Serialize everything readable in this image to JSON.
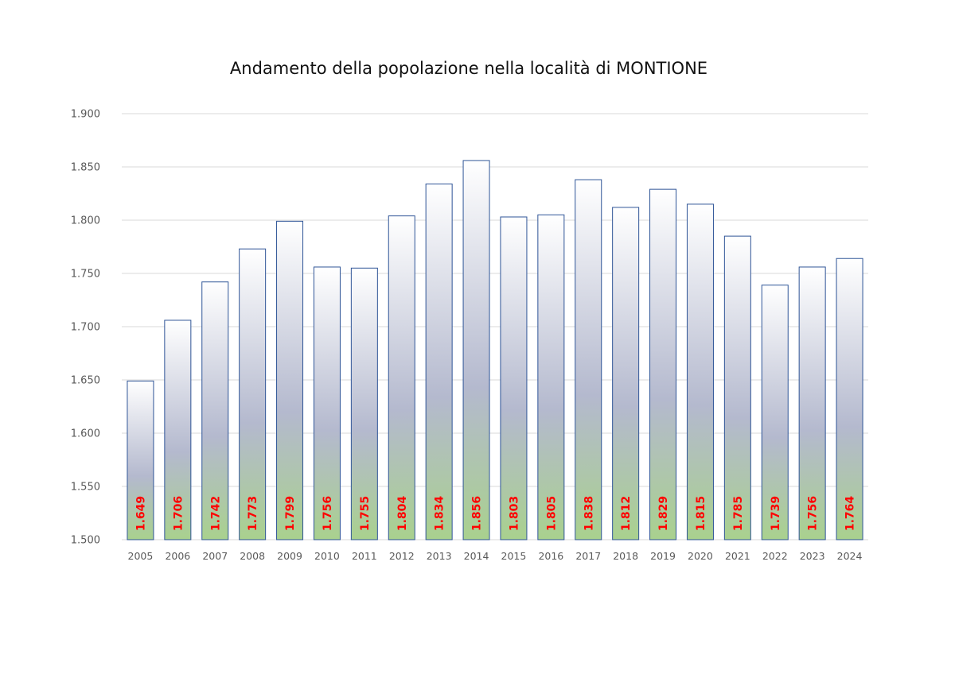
{
  "chart_data": {
    "type": "bar",
    "title": "Andamento della popolazione nella località di MONTIONE",
    "xlabel": "",
    "ylabel": "",
    "categories": [
      "2005",
      "2006",
      "2007",
      "2008",
      "2009",
      "2010",
      "2011",
      "2012",
      "2013",
      "2014",
      "2015",
      "2016",
      "2017",
      "2018",
      "2019",
      "2020",
      "2021",
      "2022",
      "2023",
      "2024"
    ],
    "values": [
      1649,
      1706,
      1742,
      1773,
      1799,
      1756,
      1755,
      1804,
      1834,
      1856,
      1803,
      1805,
      1838,
      1812,
      1829,
      1815,
      1785,
      1739,
      1756,
      1764
    ],
    "data_labels": [
      "1.649",
      "1.706",
      "1.742",
      "1.773",
      "1.799",
      "1.756",
      "1.755",
      "1.804",
      "1.834",
      "1.856",
      "1.803",
      "1.805",
      "1.838",
      "1.812",
      "1.829",
      "1.815",
      "1.785",
      "1.739",
      "1.756",
      "1.764"
    ],
    "ylim": [
      1500,
      1900
    ],
    "yticks": [
      1500,
      1550,
      1600,
      1650,
      1700,
      1750,
      1800,
      1850,
      1900
    ],
    "ytick_labels": [
      "1.500",
      "1.550",
      "1.600",
      "1.650",
      "1.700",
      "1.750",
      "1.800",
      "1.850",
      "1.900"
    ],
    "grid": true,
    "legend": "none",
    "colors": {
      "bar_fill_top": "#ffffff",
      "bar_fill_mid": "#b4b9ce",
      "bar_fill_bottom": "#a9d18e",
      "bar_border": "#2f5597",
      "data_label": "#ff0000",
      "gridline": "#d9d9d9"
    }
  }
}
